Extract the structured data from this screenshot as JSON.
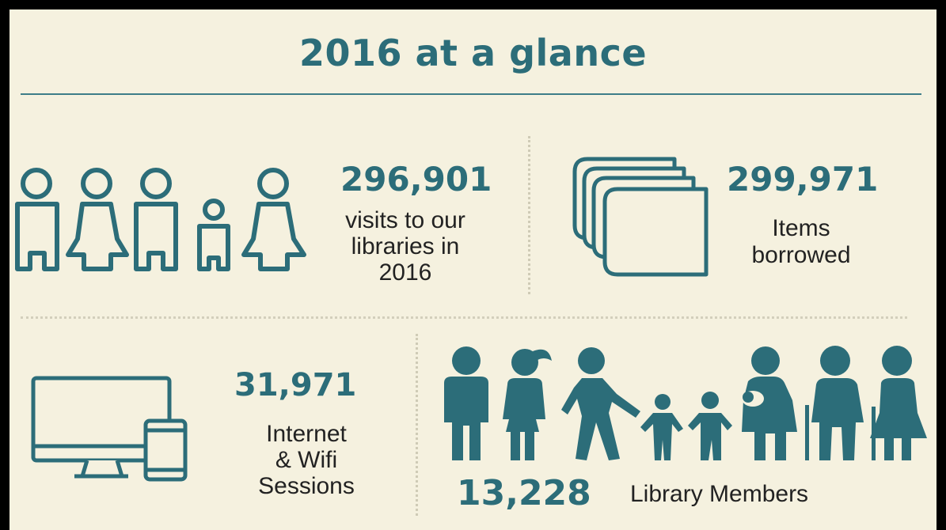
{
  "header": {
    "title": "2016 at a glance"
  },
  "stats": {
    "visits": {
      "value": "296,901",
      "line1": "visits to our",
      "line2": "libraries in",
      "line3": "2016"
    },
    "borrowed": {
      "value": "299,971",
      "line1": "Items",
      "line2": "borrowed"
    },
    "internet": {
      "value": "31,971",
      "line1": "Internet",
      "line2": "& Wifi",
      "line3": "Sessions"
    },
    "members": {
      "value": "13,228",
      "label": "Library Members"
    }
  },
  "icons": [
    "people-outline-icon",
    "stacked-books-icon",
    "monitor-tablet-icon",
    "family-people-icon"
  ],
  "colors": {
    "accent": "#2c6d79",
    "background": "#f5f1df",
    "frame": "#000000"
  }
}
